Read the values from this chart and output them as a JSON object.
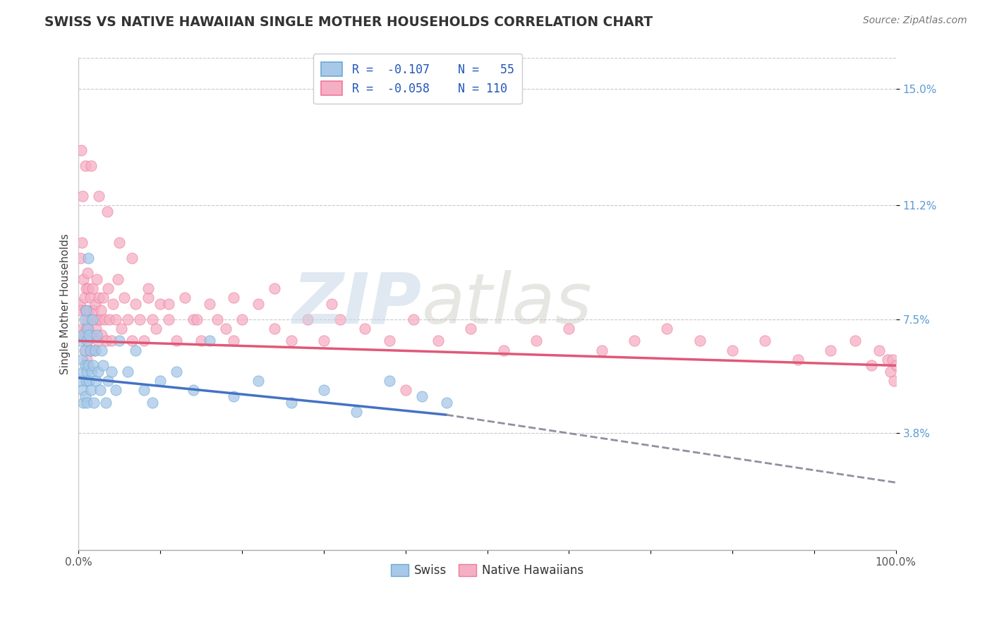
{
  "title": "SWISS VS NATIVE HAWAIIAN SINGLE MOTHER HOUSEHOLDS CORRELATION CHART",
  "source": "Source: ZipAtlas.com",
  "ylabel": "Single Mother Households",
  "xlim": [
    0.0,
    1.0
  ],
  "ylim": [
    0.0,
    0.16
  ],
  "xtick_positions": [
    0.0,
    0.1,
    0.2,
    0.3,
    0.4,
    0.5,
    0.6,
    0.7,
    0.8,
    0.9,
    1.0
  ],
  "xtick_labels": [
    "0.0%",
    "",
    "",
    "",
    "",
    "",
    "",
    "",
    "",
    "",
    "100.0%"
  ],
  "ytick_labels": [
    "3.8%",
    "7.5%",
    "11.2%",
    "15.0%"
  ],
  "ytick_positions": [
    0.038,
    0.075,
    0.112,
    0.15
  ],
  "swiss_color": "#a8c8e8",
  "hawaiian_color": "#f5afc5",
  "swiss_edge_color": "#6aaad4",
  "hawaiian_edge_color": "#f07898",
  "swiss_line_color": "#4472c4",
  "hawaiian_line_color": "#e05878",
  "dash_line_color": "#9090a0",
  "grid_color": "#c8c8d0",
  "watermark_zip": "ZIP",
  "watermark_atlas": "atlas",
  "swiss_line_x": [
    0.0,
    0.45
  ],
  "swiss_line_y": [
    0.056,
    0.044
  ],
  "hawaiian_line_x": [
    0.0,
    1.0
  ],
  "hawaiian_line_y": [
    0.068,
    0.06
  ],
  "dash_line_x": [
    0.45,
    1.0
  ],
  "dash_line_y": [
    0.044,
    0.022
  ],
  "swiss_scatter_x": [
    0.002,
    0.003,
    0.004,
    0.005,
    0.005,
    0.006,
    0.006,
    0.007,
    0.007,
    0.008,
    0.008,
    0.009,
    0.009,
    0.01,
    0.01,
    0.01,
    0.011,
    0.012,
    0.012,
    0.013,
    0.013,
    0.014,
    0.015,
    0.016,
    0.017,
    0.018,
    0.019,
    0.02,
    0.021,
    0.022,
    0.024,
    0.026,
    0.028,
    0.03,
    0.033,
    0.036,
    0.04,
    0.045,
    0.05,
    0.06,
    0.07,
    0.08,
    0.09,
    0.1,
    0.12,
    0.14,
    0.16,
    0.19,
    0.22,
    0.26,
    0.3,
    0.34,
    0.38,
    0.42,
    0.45
  ],
  "swiss_scatter_y": [
    0.068,
    0.055,
    0.062,
    0.052,
    0.07,
    0.058,
    0.048,
    0.065,
    0.075,
    0.06,
    0.05,
    0.078,
    0.055,
    0.068,
    0.058,
    0.048,
    0.072,
    0.095,
    0.06,
    0.055,
    0.07,
    0.065,
    0.052,
    0.058,
    0.075,
    0.06,
    0.048,
    0.065,
    0.055,
    0.07,
    0.058,
    0.052,
    0.065,
    0.06,
    0.048,
    0.055,
    0.058,
    0.052,
    0.068,
    0.058,
    0.065,
    0.052,
    0.048,
    0.055,
    0.058,
    0.052,
    0.068,
    0.05,
    0.055,
    0.048,
    0.052,
    0.045,
    0.055,
    0.05,
    0.048
  ],
  "hawaiian_scatter_x": [
    0.001,
    0.002,
    0.003,
    0.004,
    0.005,
    0.005,
    0.006,
    0.007,
    0.007,
    0.008,
    0.008,
    0.009,
    0.009,
    0.01,
    0.01,
    0.011,
    0.011,
    0.012,
    0.012,
    0.013,
    0.014,
    0.014,
    0.015,
    0.016,
    0.017,
    0.018,
    0.019,
    0.02,
    0.021,
    0.022,
    0.023,
    0.024,
    0.025,
    0.026,
    0.027,
    0.028,
    0.03,
    0.032,
    0.034,
    0.036,
    0.038,
    0.04,
    0.042,
    0.045,
    0.048,
    0.052,
    0.056,
    0.06,
    0.065,
    0.07,
    0.075,
    0.08,
    0.085,
    0.09,
    0.095,
    0.1,
    0.11,
    0.12,
    0.13,
    0.14,
    0.15,
    0.16,
    0.17,
    0.18,
    0.19,
    0.2,
    0.22,
    0.24,
    0.26,
    0.28,
    0.3,
    0.32,
    0.35,
    0.38,
    0.41,
    0.44,
    0.48,
    0.52,
    0.56,
    0.6,
    0.64,
    0.68,
    0.72,
    0.76,
    0.8,
    0.84,
    0.88,
    0.92,
    0.95,
    0.97,
    0.98,
    0.99,
    0.993,
    0.996,
    0.998,
    1.0,
    0.003,
    0.008,
    0.015,
    0.025,
    0.035,
    0.05,
    0.065,
    0.085,
    0.11,
    0.145,
    0.19,
    0.24,
    0.31,
    0.4
  ],
  "hawaiian_scatter_y": [
    0.08,
    0.095,
    0.078,
    0.1,
    0.072,
    0.115,
    0.088,
    0.082,
    0.07,
    0.078,
    0.065,
    0.085,
    0.072,
    0.075,
    0.062,
    0.09,
    0.068,
    0.072,
    0.085,
    0.078,
    0.082,
    0.065,
    0.075,
    0.07,
    0.085,
    0.078,
    0.065,
    0.08,
    0.072,
    0.088,
    0.075,
    0.068,
    0.082,
    0.075,
    0.078,
    0.07,
    0.082,
    0.075,
    0.068,
    0.085,
    0.075,
    0.068,
    0.08,
    0.075,
    0.088,
    0.072,
    0.082,
    0.075,
    0.068,
    0.08,
    0.075,
    0.068,
    0.082,
    0.075,
    0.072,
    0.08,
    0.075,
    0.068,
    0.082,
    0.075,
    0.068,
    0.08,
    0.075,
    0.072,
    0.068,
    0.075,
    0.08,
    0.072,
    0.068,
    0.075,
    0.068,
    0.075,
    0.072,
    0.068,
    0.075,
    0.068,
    0.072,
    0.065,
    0.068,
    0.072,
    0.065,
    0.068,
    0.072,
    0.068,
    0.065,
    0.068,
    0.062,
    0.065,
    0.068,
    0.06,
    0.065,
    0.062,
    0.058,
    0.062,
    0.055,
    0.06,
    0.13,
    0.125,
    0.125,
    0.115,
    0.11,
    0.1,
    0.095,
    0.085,
    0.08,
    0.075,
    0.082,
    0.085,
    0.08,
    0.052
  ]
}
